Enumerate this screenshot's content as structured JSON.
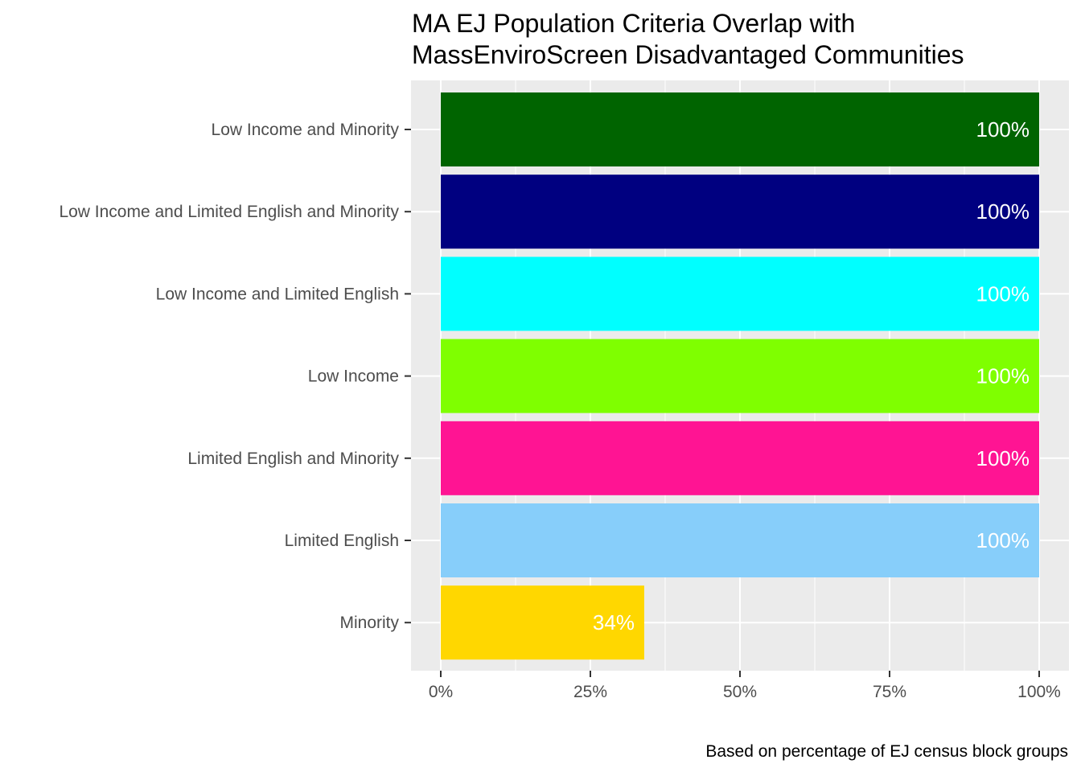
{
  "chart_data": {
    "type": "bar",
    "orientation": "horizontal",
    "title_lines": [
      "MA EJ Population Criteria Overlap with",
      "MassEnviroScreen Disadvantaged Communities"
    ],
    "caption": "Based on percentage of EJ census block groups",
    "xlabel": "",
    "ylabel": "",
    "xlim": [
      0,
      1
    ],
    "x_ticks": [
      0,
      0.25,
      0.5,
      0.75,
      1
    ],
    "x_tick_labels": [
      "0%",
      "25%",
      "50%",
      "75%",
      "100%"
    ],
    "grid": true,
    "legend": "none",
    "categories": [
      "Low Income and Minority",
      "Low Income and Limited English and Minority",
      "Low Income and Limited English",
      "Low Income",
      "Limited English and Minority",
      "Limited English",
      "Minority"
    ],
    "values": [
      1.0,
      1.0,
      1.0,
      1.0,
      1.0,
      1.0,
      0.34
    ],
    "value_labels": [
      "100%",
      "100%",
      "100%",
      "100%",
      "100%",
      "100%",
      "34%"
    ],
    "colors": [
      "#006400",
      "#000080",
      "#00FFFF",
      "#7FFF00",
      "#FF1493",
      "#87CEFA",
      "#FFD700"
    ],
    "panel_background": "#EBEBEB",
    "grid_color": "#FFFFFF"
  }
}
